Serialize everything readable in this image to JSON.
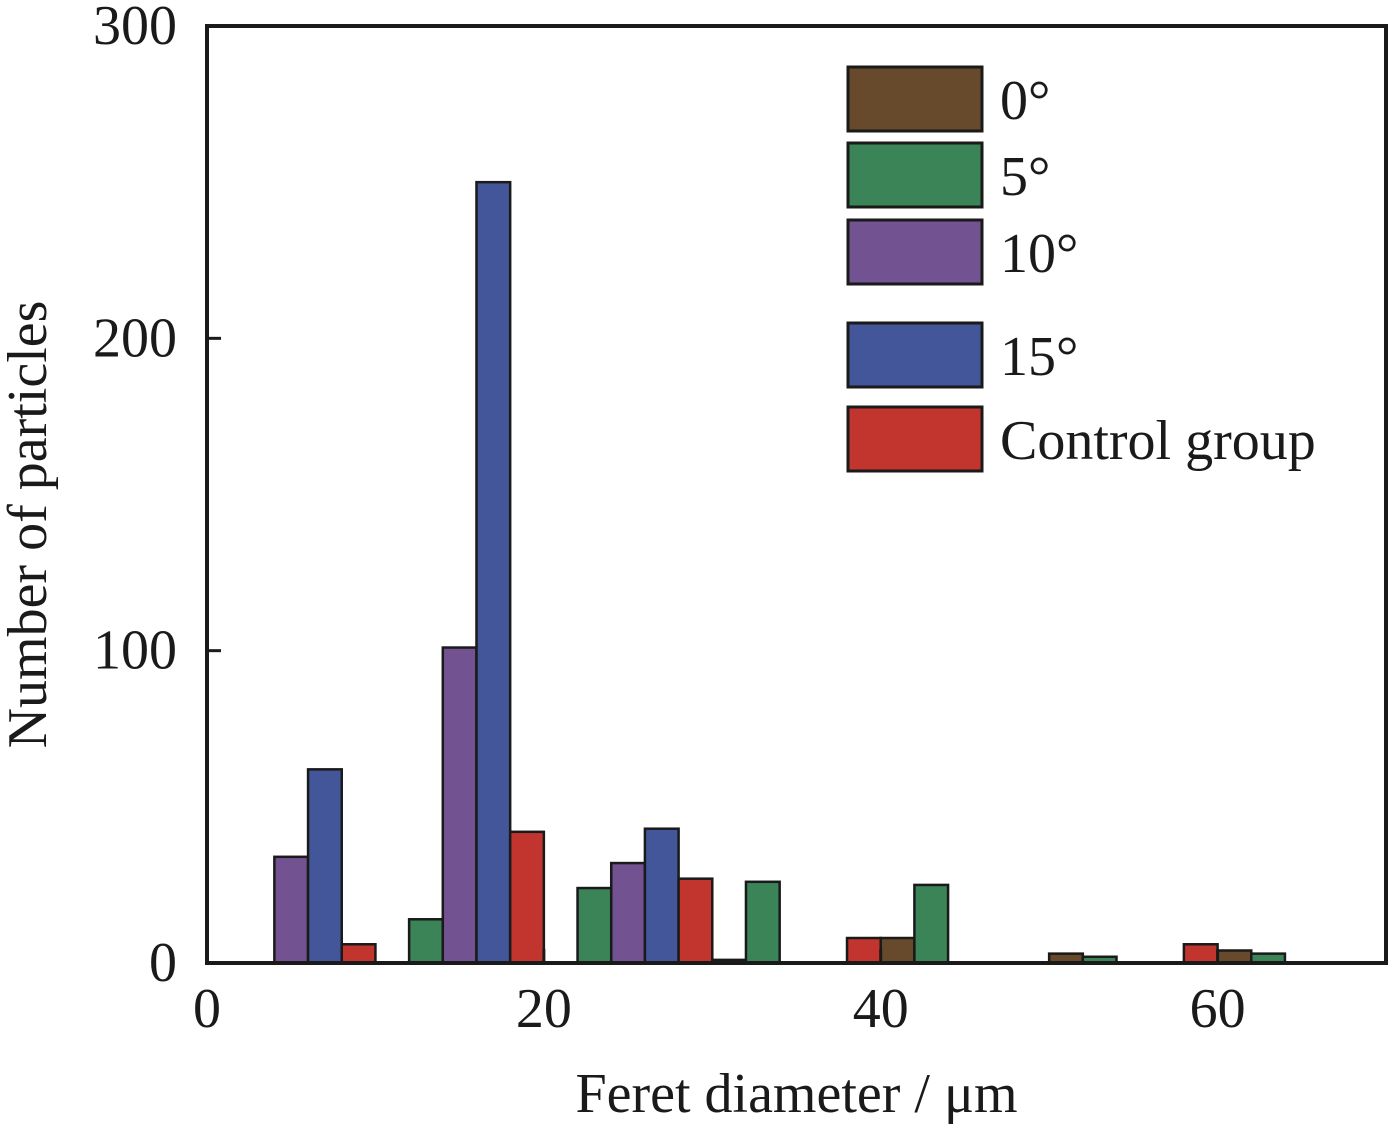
{
  "chart_data": {
    "type": "bar",
    "title": "",
    "xlabel": "Feret diameter / μm",
    "ylabel": "Number of particles",
    "xlim": [
      0,
      70
    ],
    "ylim": [
      0,
      300
    ],
    "xticks": [
      0,
      20,
      40,
      60
    ],
    "yticks": [
      0,
      100,
      200,
      300
    ],
    "grid": false,
    "legend_position": "top-right",
    "bin_width": 2,
    "series": [
      {
        "name": "0°",
        "color": "#664a2b",
        "bars": [
          {
            "x": 31,
            "value": 1
          },
          {
            "x": 41,
            "value": 8
          },
          {
            "x": 51,
            "value": 3
          },
          {
            "x": 61,
            "value": 4
          }
        ]
      },
      {
        "name": "5°",
        "color": "#3a8457",
        "bars": [
          {
            "x": 13,
            "value": 14
          },
          {
            "x": 23,
            "value": 24
          },
          {
            "x": 33,
            "value": 26
          },
          {
            "x": 43,
            "value": 25
          },
          {
            "x": 53,
            "value": 2
          },
          {
            "x": 63,
            "value": 3
          }
        ]
      },
      {
        "name": "10°",
        "color": "#735292",
        "bars": [
          {
            "x": 5,
            "value": 34
          },
          {
            "x": 15,
            "value": 101
          },
          {
            "x": 25,
            "value": 32
          }
        ]
      },
      {
        "name": "15°",
        "color": "#43569a",
        "bars": [
          {
            "x": 7,
            "value": 62
          },
          {
            "x": 17,
            "value": 250
          },
          {
            "x": 27,
            "value": 43
          }
        ]
      },
      {
        "name": "Control group",
        "color": "#c2352e",
        "bars": [
          {
            "x": 9,
            "value": 6
          },
          {
            "x": 19,
            "value": 42
          },
          {
            "x": 29,
            "value": 27
          },
          {
            "x": 39,
            "value": 8
          },
          {
            "x": 59,
            "value": 6
          }
        ]
      }
    ]
  }
}
